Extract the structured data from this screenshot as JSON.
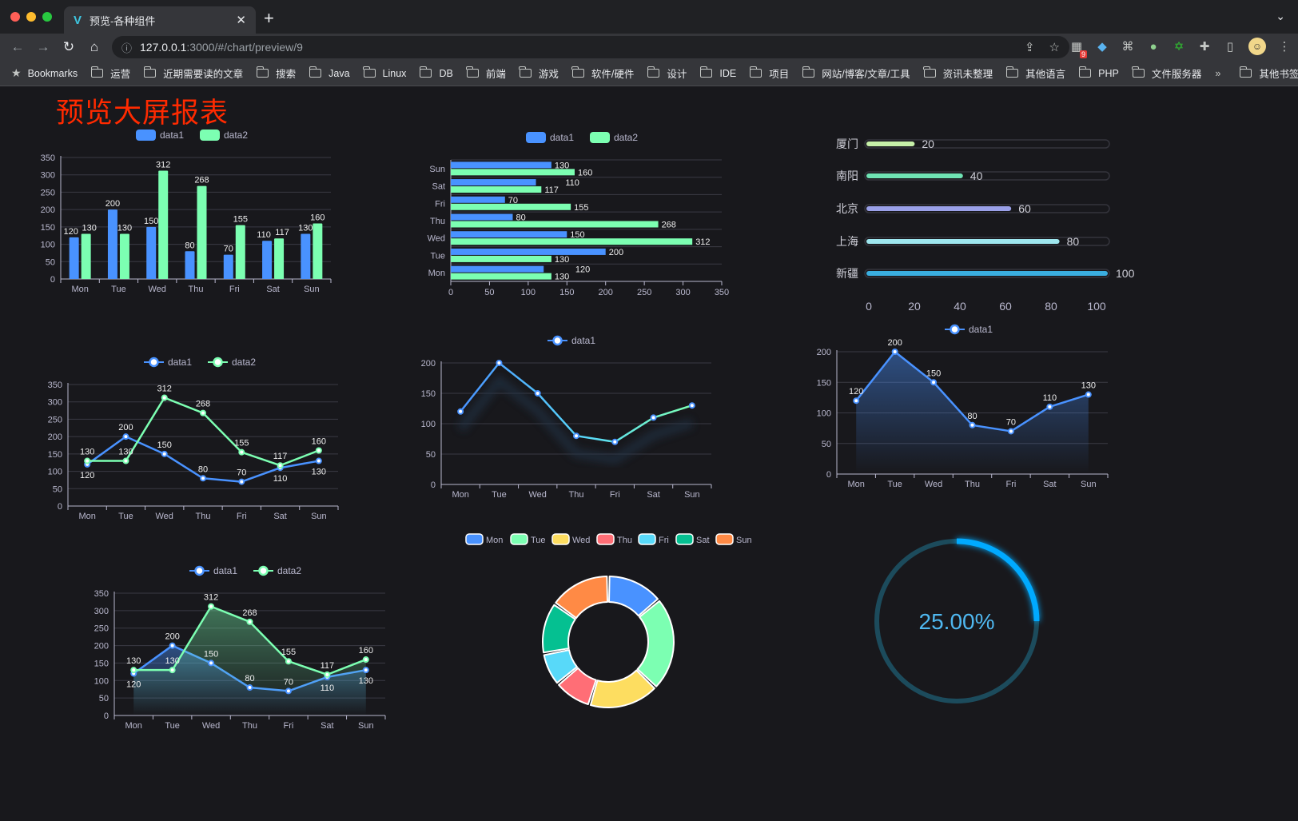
{
  "browser": {
    "tab_title": "预览-各种组件",
    "url_host": "127.0.0.1",
    "url_path": ":3000/#/chart/preview/9",
    "extension_badge": "9",
    "bookmarks_label": "Bookmarks",
    "bookmarks": [
      "运营",
      "近期需要读的文章",
      "搜索",
      "Java",
      "Linux",
      "DB",
      "前端",
      "游戏",
      "软件/硬件",
      "设计",
      "IDE",
      "项目",
      "网站/博客/文章/工具",
      "资讯未整理",
      "其他语言",
      "PHP",
      "文件服务器"
    ],
    "overflow": "»",
    "other_bookmarks": "其他书签"
  },
  "page": {
    "title": "预览大屏报表"
  },
  "colors": {
    "background": "#18181c",
    "title": "#ff2a00",
    "data1": "#4992ff",
    "data2": "#7cffb2",
    "palette": [
      "#4992ff",
      "#7cffb2",
      "#fddd60",
      "#ff6e76",
      "#58d9f9",
      "#05c091",
      "#ff8a45"
    ],
    "progress": [
      "#c6f0a8",
      "#6fe3b4",
      "#9aa0e8",
      "#9ee6ee",
      "#3aaee0"
    ],
    "gauge": "#00aaff",
    "gauge_track": "#1c4b5c"
  },
  "chart_data": [
    {
      "type": "bar",
      "categories": [
        "Mon",
        "Tue",
        "Wed",
        "Thu",
        "Fri",
        "Sat",
        "Sun"
      ],
      "series": [
        {
          "name": "data1",
          "values": [
            120,
            200,
            150,
            80,
            70,
            110,
            130
          ]
        },
        {
          "name": "data2",
          "values": [
            130,
            130,
            312,
            268,
            155,
            117,
            160
          ]
        }
      ],
      "ylim": [
        0,
        350
      ],
      "yticks": [
        "0",
        "50",
        "100",
        "150",
        "200",
        "250",
        "300",
        "350"
      ],
      "grid": true,
      "legend": "top",
      "data_labels": true
    },
    {
      "type": "bar",
      "orientation": "horizontal",
      "categories": [
        "Mon",
        "Tue",
        "Wed",
        "Thu",
        "Fri",
        "Sat",
        "Sun"
      ],
      "series": [
        {
          "name": "data1",
          "values": [
            120,
            200,
            150,
            80,
            70,
            110,
            130
          ]
        },
        {
          "name": "data2",
          "values": [
            130,
            130,
            312,
            268,
            155,
            117,
            160
          ]
        }
      ],
      "xlim": [
        0,
        350
      ],
      "xticks": [
        "0",
        "50",
        "100",
        "150",
        "200",
        "250",
        "300",
        "350"
      ],
      "grid": true,
      "legend": "top",
      "data_labels": true
    },
    {
      "type": "bar",
      "orientation": "horizontal",
      "style": "progress",
      "categories": [
        "厦门",
        "南阳",
        "北京",
        "上海",
        "新疆"
      ],
      "values": [
        20,
        40,
        60,
        80,
        100
      ],
      "xlim": [
        0,
        100
      ],
      "xticks": [
        "0",
        "20",
        "40",
        "60",
        "80",
        "100"
      ],
      "data_labels": true
    },
    {
      "type": "line",
      "categories": [
        "Mon",
        "Tue",
        "Wed",
        "Thu",
        "Fri",
        "Sat",
        "Sun"
      ],
      "series": [
        {
          "name": "data1",
          "values": [
            120,
            200,
            150,
            80,
            70,
            110,
            130
          ]
        },
        {
          "name": "data2",
          "values": [
            130,
            130,
            312,
            268,
            155,
            117,
            160
          ]
        }
      ],
      "ylim": [
        0,
        350
      ],
      "yticks": [
        "0",
        "50",
        "100",
        "150",
        "200",
        "250",
        "300",
        "350"
      ],
      "grid": true,
      "legend": "top",
      "data_labels": true
    },
    {
      "type": "line",
      "categories": [
        "Mon",
        "Tue",
        "Wed",
        "Thu",
        "Fri",
        "Sat",
        "Sun"
      ],
      "series": [
        {
          "name": "data1",
          "values": [
            120,
            200,
            150,
            80,
            70,
            110,
            130
          ]
        }
      ],
      "ylim": [
        0,
        200
      ],
      "yticks": [
        "0",
        "50",
        "100",
        "150",
        "200"
      ],
      "grid": true,
      "legend": "top",
      "data_labels": false,
      "gradient_line": true
    },
    {
      "type": "area",
      "categories": [
        "Mon",
        "Tue",
        "Wed",
        "Thu",
        "Fri",
        "Sat",
        "Sun"
      ],
      "series": [
        {
          "name": "data1",
          "values": [
            120,
            200,
            150,
            80,
            70,
            110,
            130
          ]
        }
      ],
      "ylim": [
        0,
        200
      ],
      "yticks": [
        "0",
        "50",
        "100",
        "150",
        "200"
      ],
      "grid": true,
      "legend": "top",
      "data_labels": true
    },
    {
      "type": "area",
      "categories": [
        "Mon",
        "Tue",
        "Wed",
        "Thu",
        "Fri",
        "Sat",
        "Sun"
      ],
      "series": [
        {
          "name": "data1",
          "values": [
            120,
            200,
            150,
            80,
            70,
            110,
            130
          ]
        },
        {
          "name": "data2",
          "values": [
            130,
            130,
            312,
            268,
            155,
            117,
            160
          ]
        }
      ],
      "ylim": [
        0,
        350
      ],
      "yticks": [
        "0",
        "50",
        "100",
        "150",
        "200",
        "250",
        "300",
        "350"
      ],
      "grid": true,
      "legend": "top",
      "data_labels": true
    },
    {
      "type": "pie",
      "style": "donut",
      "categories": [
        "Mon",
        "Tue",
        "Wed",
        "Thu",
        "Fri",
        "Sat",
        "Sun"
      ],
      "values": [
        120,
        200,
        150,
        80,
        70,
        110,
        130
      ],
      "legend": "top"
    },
    {
      "type": "gauge",
      "value": 25,
      "label": "25.00%"
    }
  ]
}
